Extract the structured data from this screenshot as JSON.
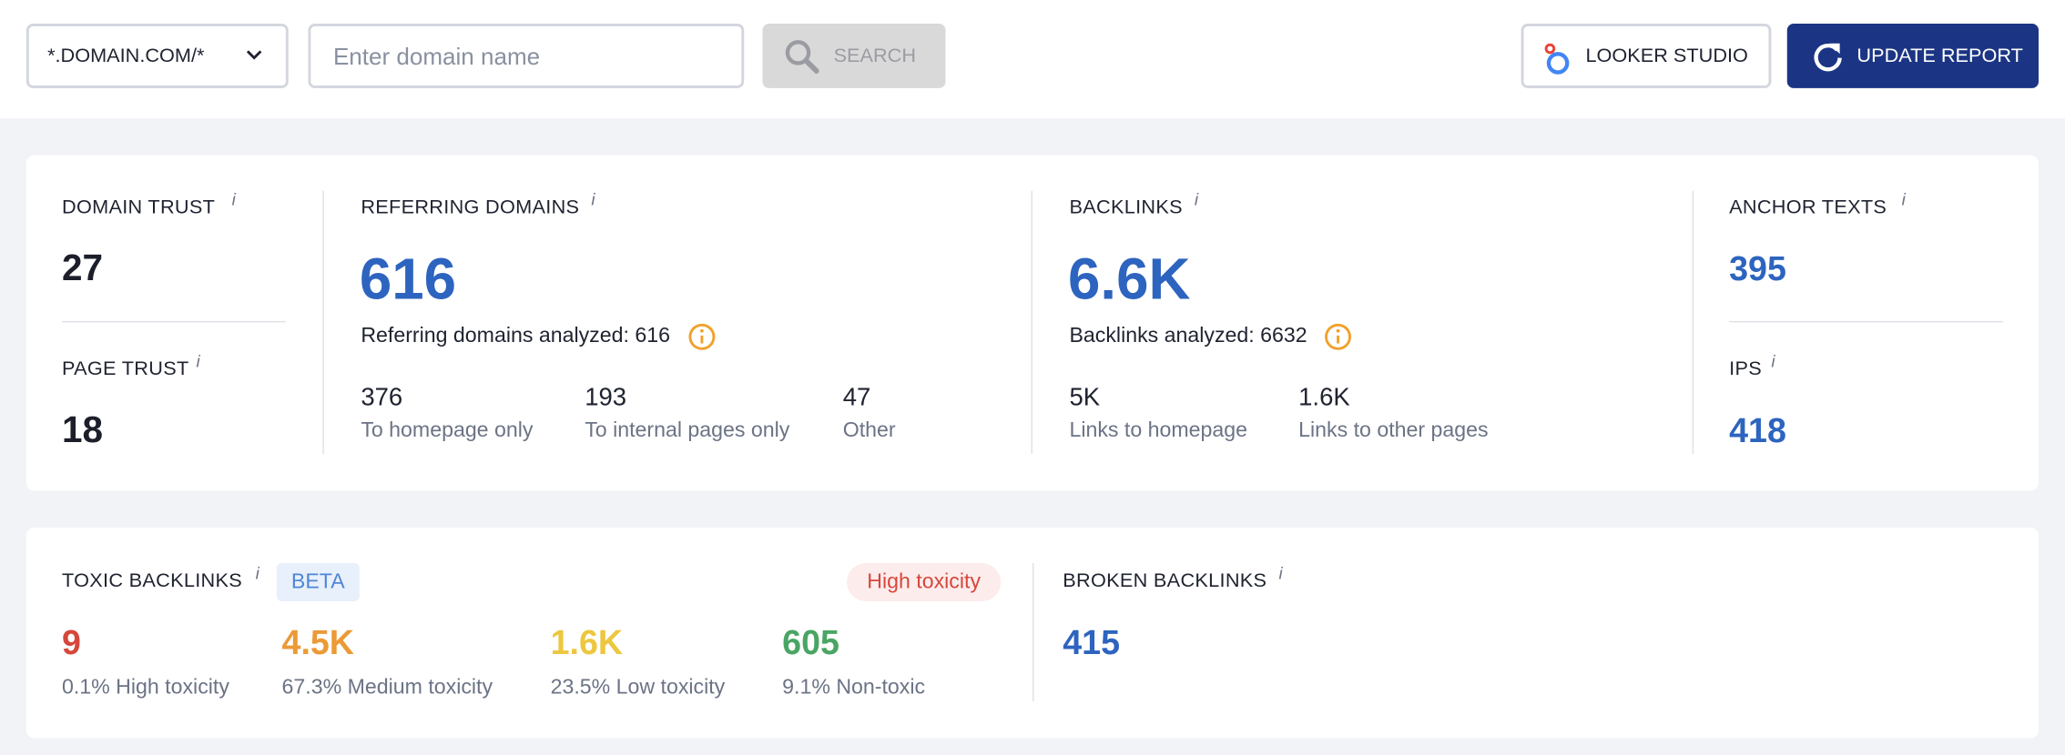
{
  "toolbar": {
    "scope": "*.DOMAIN.COM/*",
    "domain_placeholder": "Enter domain name",
    "search": "SEARCH",
    "looker_studio": "LOOKER STUDIO",
    "update_report": "UPDATE REPORT"
  },
  "overview": {
    "domain_trust": {
      "label": "DOMAIN TRUST",
      "value": "27"
    },
    "page_trust": {
      "label": "PAGE TRUST",
      "value": "18"
    },
    "referring_domains": {
      "label": "REFERRING DOMAINS",
      "value": "616",
      "analyzed": "Referring domains analyzed: 616",
      "breakdown": [
        {
          "value": "376",
          "label": "To homepage only"
        },
        {
          "value": "193",
          "label": "To internal pages only"
        },
        {
          "value": "47",
          "label": "Other"
        }
      ]
    },
    "backlinks": {
      "label": "BACKLINKS",
      "value": "6.6K",
      "analyzed": "Backlinks analyzed: 6632",
      "breakdown": [
        {
          "value": "5K",
          "label": "Links to homepage"
        },
        {
          "value": "1.6K",
          "label": "Links to other pages"
        }
      ]
    },
    "anchor_texts": {
      "label": "ANCHOR TEXTS",
      "value": "395"
    },
    "ips": {
      "label": "IPS",
      "value": "418"
    }
  },
  "toxic_backlinks": {
    "label": "TOXIC BACKLINKS",
    "badge": "BETA",
    "status": "High toxicity",
    "levels": [
      {
        "value": "9",
        "label": "0.1% High toxicity"
      },
      {
        "value": "4.5K",
        "label": "67.3% Medium toxicity"
      },
      {
        "value": "1.6K",
        "label": "23.5% Low toxicity"
      },
      {
        "value": "605",
        "label": "9.1% Non-toxic"
      }
    ]
  },
  "broken_backlinks": {
    "label": "BROKEN BACKLINKS",
    "value": "415"
  }
}
